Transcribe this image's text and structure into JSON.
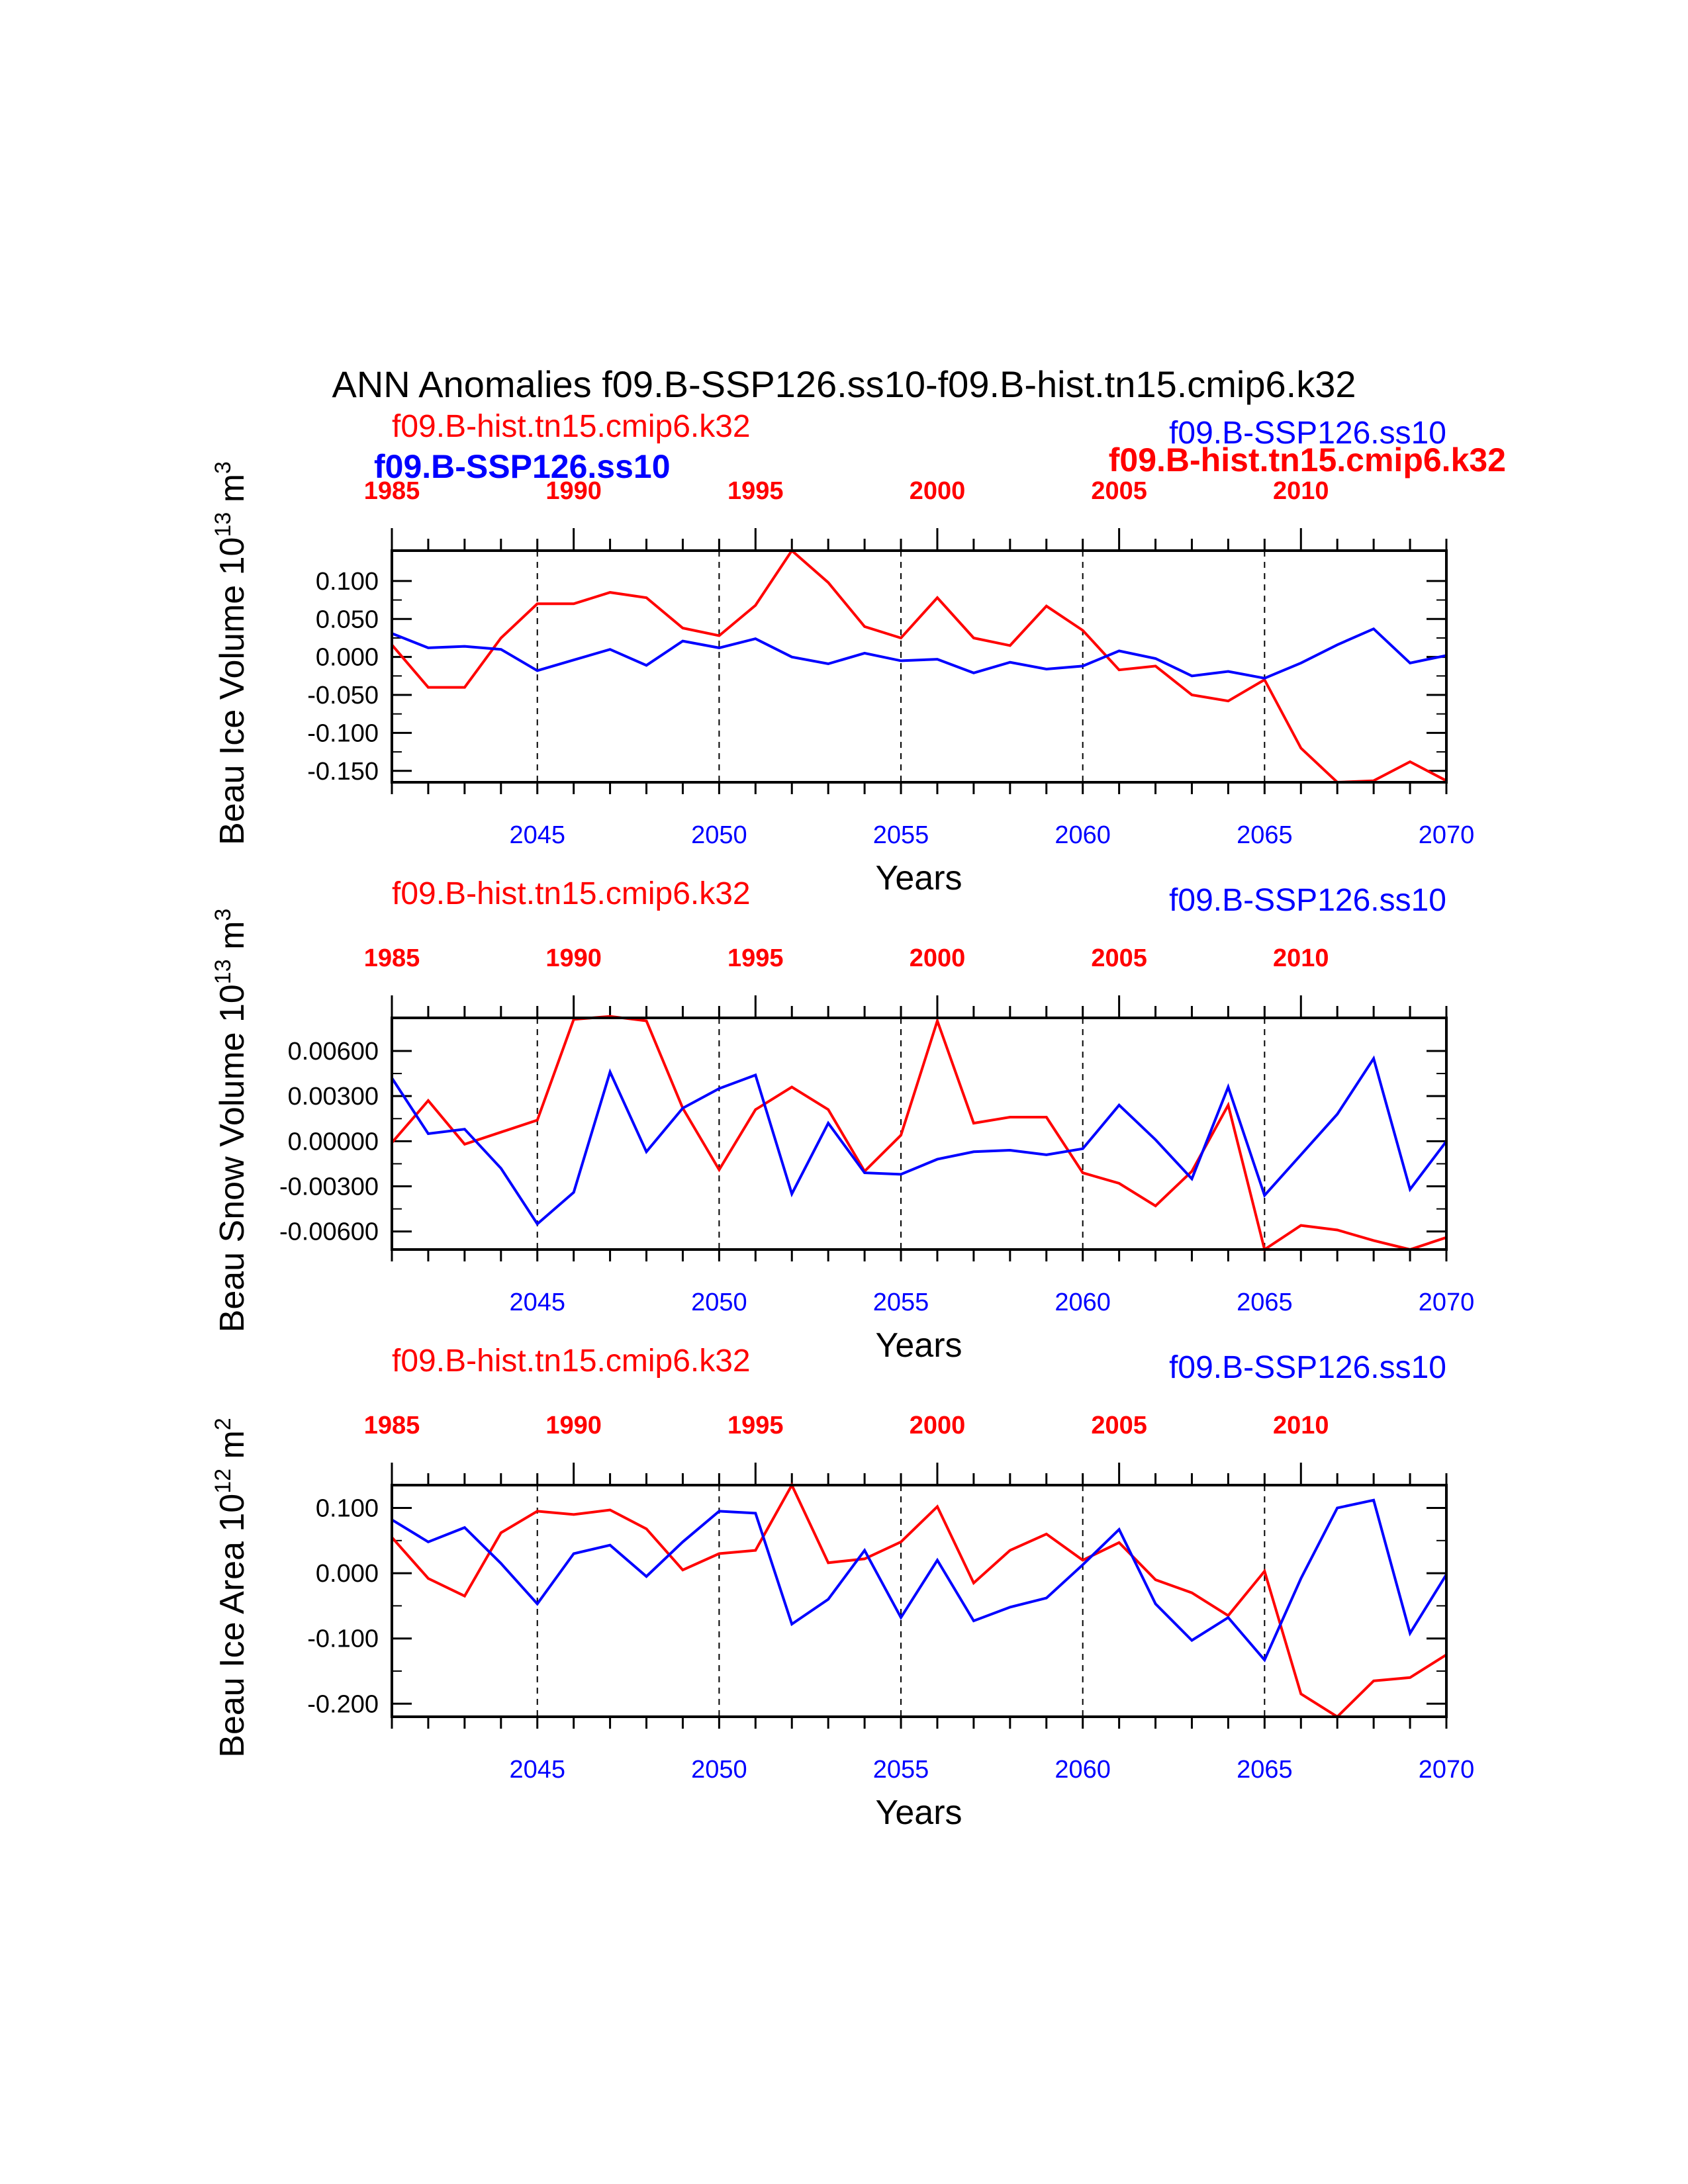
{
  "title": "ANN Anomalies f09.B-SSP126.ss10-f09.B-hist.tn15.cmip6.k32",
  "colors": {
    "case1": "#ff0000",
    "case2": "#0000ff",
    "axis": "#000000"
  },
  "top_overlay": {
    "case2_bold_label": "f09.B-SSP126.ss10",
    "case1_bold_label": "f09.B-hist.tn15.cmip6.k32"
  },
  "chart_data": [
    {
      "type": "line",
      "ylabel": "Beau Ice Volume 10",
      "ylabel_exp": "13",
      "ylabel_unit": " m",
      "ylabel_unit_exp": "3",
      "xlabel": "Years",
      "case1_label": "f09.B-hist.tn15.cmip6.k32",
      "case2_label": "f09.B-SSP126.ss10",
      "top_ticks": [
        "1985",
        "1990",
        "1995",
        "2000",
        "2005",
        "2010"
      ],
      "bottom_ticks": [
        "2045",
        "2050",
        "2055",
        "2060",
        "2065",
        "2070"
      ],
      "yticks": [
        "0.100",
        "0.050",
        "0.000",
        "-0.050",
        "-0.100",
        "-0.150"
      ],
      "ylim": [
        -0.165,
        0.14
      ],
      "series": [
        {
          "case": "case1",
          "values": [
            0.016,
            -0.04,
            -0.04,
            0.025,
            0.07,
            0.07,
            0.085,
            0.078,
            0.038,
            0.028,
            0.068,
            0.14,
            0.098,
            0.04,
            0.025,
            0.078,
            0.025,
            0.015,
            0.067,
            0.035,
            -0.017,
            -0.012,
            -0.05,
            -0.058,
            -0.03,
            -0.12,
            -0.165,
            -0.163,
            -0.138,
            -0.163
          ]
        },
        {
          "case": "case2",
          "values": [
            0.031,
            0.012,
            0.014,
            0.01,
            -0.018,
            -0.004,
            0.01,
            -0.011,
            0.021,
            0.012,
            0.024,
            0.0,
            -0.009,
            0.005,
            -0.005,
            -0.003,
            -0.021,
            -0.007,
            -0.016,
            -0.012,
            0.008,
            -0.002,
            -0.025,
            -0.019,
            -0.028,
            -0.008,
            0.016,
            0.037,
            -0.008,
            0.002
          ]
        }
      ]
    },
    {
      "type": "line",
      "ylabel": "Beau Snow Volume 10",
      "ylabel_exp": "13",
      "ylabel_unit": " m",
      "ylabel_unit_exp": "3",
      "xlabel": "Years",
      "case1_label": "f09.B-hist.tn15.cmip6.k32",
      "case2_label": "f09.B-SSP126.ss10",
      "top_ticks": [
        "1985",
        "1990",
        "1995",
        "2000",
        "2005",
        "2010"
      ],
      "bottom_ticks": [
        "2045",
        "2050",
        "2055",
        "2060",
        "2065",
        "2070"
      ],
      "yticks": [
        "0.00600",
        "0.00300",
        "0.00000",
        "-0.00300",
        "-0.00600"
      ],
      "ylim": [
        -0.0072,
        0.0082
      ],
      "series": [
        {
          "case": "case1",
          "values": [
            -0.0001,
            0.0027,
            -0.0002,
            0.0006,
            0.0014,
            0.0081,
            0.0083,
            0.008,
            0.0022,
            -0.0019,
            0.0021,
            0.0036,
            0.0021,
            -0.002,
            0.0004,
            0.008,
            0.0012,
            0.0016,
            0.0016,
            -0.0021,
            -0.0028,
            -0.0043,
            -0.002,
            0.0024,
            -0.0072,
            -0.0056,
            -0.0059,
            -0.0066,
            -0.0072,
            -0.0064
          ]
        },
        {
          "case": "case2",
          "values": [
            0.0042,
            0.0005,
            0.0008,
            -0.0018,
            -0.0055,
            -0.0034,
            0.0046,
            -0.0007,
            0.0022,
            0.0035,
            0.0044,
            -0.0035,
            0.0012,
            -0.0021,
            -0.0022,
            -0.0012,
            -0.0007,
            -0.0006,
            -0.0009,
            -0.0005,
            0.0024,
            0.0001,
            -0.0025,
            0.0036,
            -0.0036,
            -0.0009,
            0.0018,
            0.0055,
            -0.0032,
            0.0
          ]
        }
      ]
    },
    {
      "type": "line",
      "ylabel": "Beau Ice Area 10",
      "ylabel_exp": "12",
      "ylabel_unit": " m",
      "ylabel_unit_exp": "2",
      "xlabel": "Years",
      "case1_label": "f09.B-hist.tn15.cmip6.k32",
      "case2_label": "f09.B-SSP126.ss10",
      "top_ticks": [
        "1985",
        "1990",
        "1995",
        "2000",
        "2005",
        "2010"
      ],
      "bottom_ticks": [
        "2045",
        "2050",
        "2055",
        "2060",
        "2065",
        "2070"
      ],
      "yticks": [
        "0.100",
        "0.000",
        "-0.100",
        "-0.200"
      ],
      "ylim": [
        -0.22,
        0.135
      ],
      "series": [
        {
          "case": "case1",
          "values": [
            0.055,
            -0.008,
            -0.035,
            0.062,
            0.095,
            0.09,
            0.097,
            0.068,
            0.005,
            0.03,
            0.035,
            0.135,
            0.016,
            0.022,
            0.048,
            0.102,
            -0.015,
            0.035,
            0.06,
            0.02,
            0.047,
            -0.01,
            -0.03,
            -0.065,
            0.003,
            -0.185,
            -0.22,
            -0.165,
            -0.16,
            -0.125
          ]
        },
        {
          "case": "case2",
          "values": [
            0.082,
            0.048,
            0.07,
            0.015,
            -0.047,
            0.03,
            0.043,
            -0.005,
            0.048,
            0.095,
            0.092,
            -0.078,
            -0.04,
            0.035,
            -0.068,
            0.02,
            -0.073,
            -0.052,
            -0.038,
            0.013,
            0.067,
            -0.047,
            -0.103,
            -0.068,
            -0.133,
            -0.008,
            0.1,
            0.112,
            -0.092,
            -0.002
          ]
        }
      ]
    }
  ]
}
